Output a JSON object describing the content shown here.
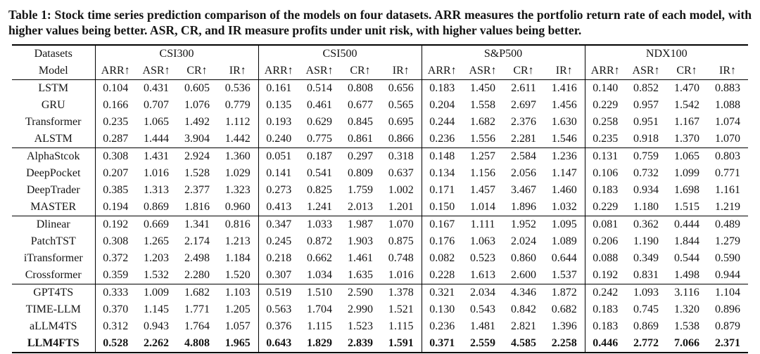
{
  "caption": {
    "label": "Table 1:",
    "body": "Stock time series prediction comparison of the models on four datasets. ARR measures the portfolio return rate of each model, with higher values being better. ASR, CR, and IR measure profits under unit risk, with higher values being better."
  },
  "table": {
    "header": {
      "corner_top": "Datasets",
      "corner_bottom": "Model",
      "datasets": [
        "CSI300",
        "CSI500",
        "S&P500",
        "NDX100"
      ],
      "metrics": [
        "ARR↑",
        "ASR↑",
        "CR↑",
        "IR↑"
      ]
    },
    "groups": [
      {
        "rows": [
          {
            "model": "LSTM",
            "bold": false,
            "values": [
              "0.104",
              "0.431",
              "0.605",
              "0.536",
              "0.161",
              "0.514",
              "0.808",
              "0.656",
              "0.183",
              "1.450",
              "2.611",
              "1.416",
              "0.140",
              "0.852",
              "1.470",
              "0.883"
            ]
          },
          {
            "model": "GRU",
            "bold": false,
            "values": [
              "0.166",
              "0.707",
              "1.076",
              "0.779",
              "0.135",
              "0.461",
              "0.677",
              "0.565",
              "0.204",
              "1.558",
              "2.697",
              "1.456",
              "0.229",
              "0.957",
              "1.542",
              "1.088"
            ]
          },
          {
            "model": "Transformer",
            "bold": false,
            "values": [
              "0.235",
              "1.065",
              "1.492",
              "1.112",
              "0.193",
              "0.629",
              "0.845",
              "0.695",
              "0.244",
              "1.682",
              "2.376",
              "1.630",
              "0.258",
              "0.951",
              "1.167",
              "1.074"
            ]
          },
          {
            "model": "ALSTM",
            "bold": false,
            "values": [
              "0.287",
              "1.444",
              "3.904",
              "1.442",
              "0.240",
              "0.775",
              "0.861",
              "0.866",
              "0.236",
              "1.556",
              "2.281",
              "1.546",
              "0.235",
              "0.918",
              "1.370",
              "1.070"
            ]
          }
        ]
      },
      {
        "rows": [
          {
            "model": "AlphaStcok",
            "bold": false,
            "values": [
              "0.308",
              "1.431",
              "2.924",
              "1.360",
              "0.051",
              "0.187",
              "0.297",
              "0.318",
              "0.148",
              "1.257",
              "2.584",
              "1.236",
              "0.131",
              "0.759",
              "1.065",
              "0.803"
            ]
          },
          {
            "model": "DeepPocket",
            "bold": false,
            "values": [
              "0.207",
              "1.016",
              "1.528",
              "1.029",
              "0.141",
              "0.541",
              "0.809",
              "0.637",
              "0.134",
              "1.156",
              "2.056",
              "1.147",
              "0.106",
              "0.732",
              "1.099",
              "0.771"
            ]
          },
          {
            "model": "DeepTrader",
            "bold": false,
            "values": [
              "0.385",
              "1.313",
              "2.377",
              "1.323",
              "0.273",
              "0.825",
              "1.759",
              "1.002",
              "0.171",
              "1.457",
              "3.467",
              "1.460",
              "0.183",
              "0.934",
              "1.698",
              "1.161"
            ]
          },
          {
            "model": "MASTER",
            "bold": false,
            "values": [
              "0.194",
              "0.869",
              "1.816",
              "0.960",
              "0.413",
              "1.241",
              "2.013",
              "1.201",
              "0.150",
              "1.014",
              "1.896",
              "1.032",
              "0.229",
              "1.180",
              "1.515",
              "1.219"
            ]
          }
        ]
      },
      {
        "rows": [
          {
            "model": "Dlinear",
            "bold": false,
            "values": [
              "0.192",
              "0.669",
              "1.341",
              "0.816",
              "0.347",
              "1.033",
              "1.987",
              "1.070",
              "0.167",
              "1.111",
              "1.952",
              "1.095",
              "0.081",
              "0.362",
              "0.444",
              "0.489"
            ]
          },
          {
            "model": "PatchTST",
            "bold": false,
            "values": [
              "0.308",
              "1.265",
              "2.174",
              "1.213",
              "0.245",
              "0.872",
              "1.903",
              "0.875",
              "0.176",
              "1.063",
              "2.024",
              "1.089",
              "0.206",
              "1.190",
              "1.844",
              "1.279"
            ]
          },
          {
            "model": "iTransformer",
            "bold": false,
            "values": [
              "0.372",
              "1.203",
              "2.498",
              "1.184",
              "0.218",
              "0.662",
              "1.461",
              "0.748",
              "0.082",
              "0.523",
              "0.860",
              "0.644",
              "0.088",
              "0.349",
              "0.544",
              "0.590"
            ]
          },
          {
            "model": "Crossformer",
            "bold": false,
            "values": [
              "0.359",
              "1.532",
              "2.280",
              "1.520",
              "0.307",
              "1.034",
              "1.635",
              "1.016",
              "0.228",
              "1.613",
              "2.600",
              "1.537",
              "0.192",
              "0.831",
              "1.498",
              "0.944"
            ]
          }
        ]
      },
      {
        "rows": [
          {
            "model": "GPT4TS",
            "bold": false,
            "values": [
              "0.333",
              "1.009",
              "1.682",
              "1.103",
              "0.519",
              "1.510",
              "2.590",
              "1.378",
              "0.321",
              "2.034",
              "4.346",
              "1.872",
              "0.242",
              "1.093",
              "3.116",
              "1.104"
            ]
          },
          {
            "model": "TIME-LLM",
            "bold": false,
            "values": [
              "0.370",
              "1.145",
              "1.771",
              "1.205",
              "0.563",
              "1.704",
              "2.990",
              "1.521",
              "0.130",
              "0.543",
              "0.842",
              "0.682",
              "0.183",
              "0.745",
              "1.320",
              "0.896"
            ]
          },
          {
            "model": "aLLM4TS",
            "bold": false,
            "values": [
              "0.312",
              "0.943",
              "1.764",
              "1.057",
              "0.376",
              "1.115",
              "1.523",
              "1.115",
              "0.236",
              "1.481",
              "2.821",
              "1.396",
              "0.183",
              "0.869",
              "1.538",
              "0.879"
            ]
          },
          {
            "model": "LLM4FTS",
            "bold": true,
            "values": [
              "0.528",
              "2.262",
              "4.808",
              "1.965",
              "0.643",
              "1.829",
              "2.839",
              "1.591",
              "0.371",
              "2.559",
              "4.585",
              "2.258",
              "0.446",
              "2.772",
              "7.066",
              "2.371"
            ]
          }
        ]
      }
    ]
  }
}
